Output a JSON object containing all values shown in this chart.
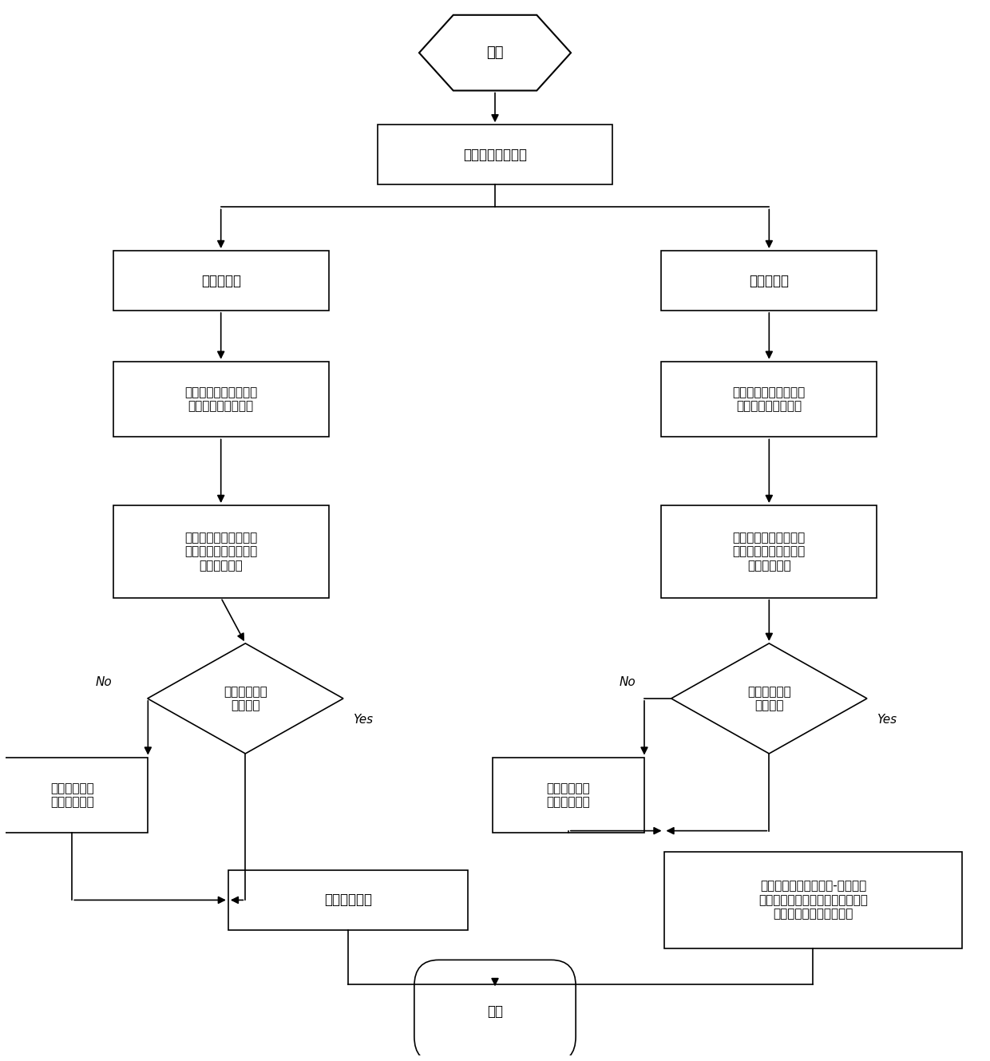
{
  "bg_color": "#ffffff",
  "line_color": "#000000",
  "text_color": "#000000",
  "font_size": 11,
  "font_family": "SimHei",
  "start_label": "开始",
  "fault_label": "单相接地故障发生",
  "mode1_label": "配置模式一",
  "mode2_label": "配置模式二",
  "step1L_label": "各级分段开关暂态功率\n方向保护启动，计时",
  "step1R_label": "首级分段开关暂态功率\n方向保护启动，计时",
  "step2L_label": "中性点小电阻投入，各\n级分段开关零序过流保\n护启动，计时",
  "step2R_label": "中性点小电阻投入，首\n级分段开关零序过流保\n护启动，计时",
  "diamond1L_label": "零序过流保护\n出口跳闸",
  "diamond1R_label": "零序过流保护\n出口跳闸",
  "noL_label": "暂态功率方向\n保护出口跳闸",
  "noR_label": "暂态功率方向\n保护出口跳闸",
  "isolateL_label": "故障隔离完毕",
  "isolateR_label": "后级分段开关启动电压-时间型馈\n线自动化逻辑，配合首级分段开关\n重合闸功能完成故障隔离",
  "end_label": "结束",
  "no_label": "No",
  "yes_label": "Yes"
}
